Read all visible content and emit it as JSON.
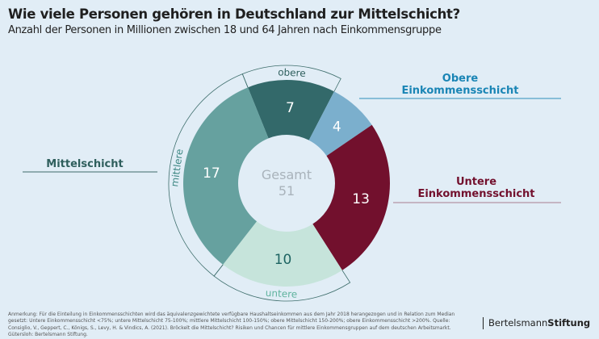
{
  "header": {
    "title": "Wie viele Personen gehören in Deutschland zur Mittelschicht?",
    "subtitle": "Anzahl der Personen in Millionen zwischen 18 und 64 Jahren nach Einkommensgruppe"
  },
  "chart_data": {
    "type": "pie",
    "donut": true,
    "center_label": "Gesamt",
    "center_value": "51",
    "slices": [
      {
        "label": "obere",
        "group": "Mittelschicht",
        "value": 7,
        "color": "#33696a",
        "text_color": "#ffffff"
      },
      {
        "label": "Obere Einkommensschicht",
        "group": "Obere Einkommensschicht",
        "value": 4,
        "color": "#7bafcd",
        "text_color": "#ffffff"
      },
      {
        "label": "Untere Einkommensschicht",
        "group": "Untere Einkommensschicht",
        "value": 13,
        "color": "#72102d",
        "text_color": "#ffffff"
      },
      {
        "label": "untere",
        "group": "Mittelschicht",
        "value": 10,
        "color": "#c6e4db",
        "text_color": "#1d6462"
      },
      {
        "label": "mittlere",
        "group": "Mittelschicht",
        "value": 17,
        "color": "#66a19f",
        "text_color": "#ffffff"
      }
    ],
    "bracket_labels": [
      {
        "text": "obere",
        "color": "#2f5f5d"
      },
      {
        "text": "mittlere",
        "color": "#3d8783"
      },
      {
        "text": "untere",
        "color": "#5fb39e"
      }
    ],
    "group_labels": [
      {
        "lines": [
          "Mittelschicht"
        ],
        "color": "#2f5f5d"
      },
      {
        "lines": [
          "Obere",
          "Einkommensschicht"
        ],
        "color": "#1a85b5"
      },
      {
        "lines": [
          "Untere",
          "Einkommensschicht"
        ],
        "color": "#72102d"
      }
    ]
  },
  "footer": {
    "note": "Anmerkung: Für die Einteilung in Einkommensschichten wird das äquivalenzgewichtete verfügbare Haushaltseinkommen aus dem Jahr 2018 herangezogen und in Relation zum Median gesetzt: Untere Einkommensschicht <75%; untere Mittelschicht 75-100%; mittlere Mittelschicht 100-150%; obere Mittelschicht 150-200%; obere Einkommensschicht >200%. Quelle: Consiglio, V., Geppert, C., Königs, S., Levy, H. & Vindics, A. (2021). Bröckelt die Mittelschicht? Risiken und Chancen für mittlere Einkommensgruppen auf dem deutschen Arbeitsmarkt. Gütersloh: Bertelsmann Stiftung.",
    "logo_a": "Bertelsmann",
    "logo_b": "Stiftung"
  }
}
